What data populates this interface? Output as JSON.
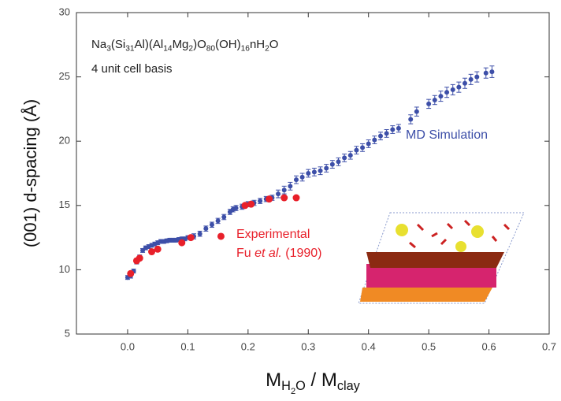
{
  "chart_data": {
    "type": "scatter",
    "title": [
      {
        "t": "Na"
      },
      {
        "t": "3",
        "sub": 1
      },
      {
        "t": "(Si"
      },
      {
        "t": "31",
        "sub": 1
      },
      {
        "t": "Al)(Al"
      },
      {
        "t": "14",
        "sub": 1
      },
      {
        "t": "Mg"
      },
      {
        "t": "2",
        "sub": 1
      },
      {
        "t": ")O"
      },
      {
        "t": "80",
        "sub": 1
      },
      {
        "t": "(OH)"
      },
      {
        "t": "16",
        "sub": 1
      },
      {
        "t": "nH"
      },
      {
        "t": "2",
        "sub": 1
      },
      {
        "t": "O"
      }
    ],
    "subtitle": "4 unit cell basis",
    "x_label": [
      {
        "t": "M"
      },
      {
        "t": "H",
        "sub": 1
      },
      {
        "t": "2",
        "sub": 2
      },
      {
        "t": "O",
        "sub": 1
      },
      {
        "t": " / M"
      },
      {
        "t": "clay",
        "sub": 1
      }
    ],
    "y_label": "(001) d-spacing  (Å)",
    "xlim": [
      -0.085,
      0.7
    ],
    "ylim": [
      5,
      30
    ],
    "xticks": [
      {
        "value": 0,
        "label": "0.0"
      },
      0.1,
      0.2,
      0.3,
      0.4,
      0.5,
      0.6,
      0.7
    ],
    "yticks": [
      5,
      10,
      15,
      20,
      25,
      30
    ],
    "series": [
      {
        "name": "MD Simulation",
        "color": "#3d4fa8",
        "x": [
          0.0,
          0.005,
          0.01,
          0.015,
          0.02,
          0.025,
          0.03,
          0.035,
          0.04,
          0.045,
          0.05,
          0.055,
          0.06,
          0.065,
          0.07,
          0.075,
          0.08,
          0.085,
          0.09,
          0.095,
          0.1,
          0.11,
          0.12,
          0.13,
          0.14,
          0.15,
          0.16,
          0.17,
          0.175,
          0.18,
          0.19,
          0.2,
          0.21,
          0.22,
          0.23,
          0.24,
          0.25,
          0.26,
          0.27,
          0.28,
          0.29,
          0.3,
          0.31,
          0.32,
          0.33,
          0.34,
          0.35,
          0.36,
          0.37,
          0.38,
          0.39,
          0.4,
          0.41,
          0.42,
          0.43,
          0.44,
          0.45,
          0.47,
          0.48,
          0.5,
          0.51,
          0.52,
          0.53,
          0.54,
          0.55,
          0.56,
          0.57,
          0.58,
          0.595,
          0.605
        ],
        "values": [
          9.4,
          9.5,
          9.9,
          10.6,
          11.0,
          11.5,
          11.7,
          11.8,
          11.9,
          12.0,
          12.1,
          12.2,
          12.2,
          12.25,
          12.3,
          12.3,
          12.3,
          12.35,
          12.4,
          12.4,
          12.5,
          12.6,
          12.8,
          13.2,
          13.5,
          13.8,
          14.1,
          14.5,
          14.7,
          14.8,
          14.9,
          15.1,
          15.2,
          15.35,
          15.5,
          15.6,
          15.9,
          16.2,
          16.5,
          17.0,
          17.2,
          17.5,
          17.6,
          17.7,
          17.9,
          18.2,
          18.4,
          18.7,
          18.9,
          19.3,
          19.5,
          19.8,
          20.1,
          20.4,
          20.6,
          20.9,
          21.0,
          21.7,
          22.3,
          22.9,
          23.2,
          23.5,
          23.8,
          24.0,
          24.2,
          24.5,
          24.8,
          25.0,
          25.3,
          25.4
        ],
        "errors": [
          0.15,
          0.15,
          0.15,
          0.15,
          0.15,
          0.15,
          0.15,
          0.15,
          0.15,
          0.15,
          0.15,
          0.15,
          0.15,
          0.15,
          0.15,
          0.15,
          0.15,
          0.15,
          0.15,
          0.15,
          0.15,
          0.2,
          0.2,
          0.2,
          0.2,
          0.2,
          0.2,
          0.2,
          0.2,
          0.2,
          0.2,
          0.2,
          0.2,
          0.2,
          0.2,
          0.2,
          0.3,
          0.3,
          0.3,
          0.3,
          0.3,
          0.3,
          0.3,
          0.3,
          0.3,
          0.3,
          0.3,
          0.3,
          0.3,
          0.3,
          0.3,
          0.3,
          0.3,
          0.3,
          0.3,
          0.3,
          0.3,
          0.35,
          0.35,
          0.35,
          0.35,
          0.4,
          0.4,
          0.4,
          0.4,
          0.4,
          0.4,
          0.4,
          0.4,
          0.45
        ]
      },
      {
        "name": "Experimental",
        "color": "#e8202a",
        "x": [
          0.005,
          0.015,
          0.02,
          0.04,
          0.05,
          0.09,
          0.105,
          0.155,
          0.195,
          0.205,
          0.235,
          0.26,
          0.28
        ],
        "values": [
          9.7,
          10.7,
          10.9,
          11.4,
          11.6,
          12.1,
          12.5,
          12.6,
          15.0,
          15.1,
          15.5,
          15.6,
          15.6
        ]
      }
    ],
    "annotation": [
      {
        "t": "Fu "
      },
      {
        "t": "et al.",
        "italic": 1
      },
      {
        "t": " (1990)"
      }
    ]
  }
}
